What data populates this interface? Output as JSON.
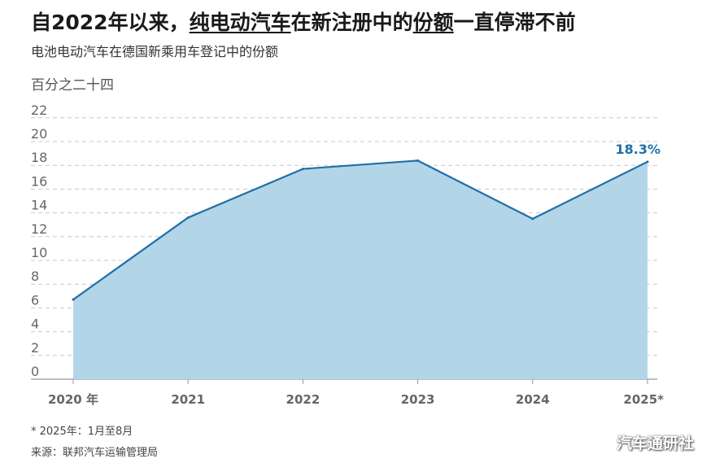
{
  "title": {
    "before": "自2022年以来，",
    "underlined1": "纯电动汽车",
    "middle": "在新注册中的",
    "underlined2": "份额",
    "after": "一直停滞不前"
  },
  "subtitle": "电池电动汽车在德国新乘用车登记中的份额",
  "unit_label": "百分之二十四",
  "footnote": "* 2025年：1月至8月",
  "source": "来源：联邦汽车运输管理局",
  "watermark": "汽车通研社",
  "chart_data": {
    "type": "area",
    "title": "自2022年以来，纯电动汽车在新注册中的份额一直停滞不前",
    "subtitle": "电池电动汽车在德国新乘用车登记中的份额",
    "categories": [
      "2020 年",
      "2021",
      "2022",
      "2023",
      "2024",
      "2025*"
    ],
    "series": [
      {
        "values": [
          6.7,
          13.6,
          17.7,
          18.4,
          13.5,
          18.3
        ]
      }
    ],
    "y_ticks": [
      0,
      2,
      4,
      6,
      8,
      10,
      12,
      14,
      16,
      18,
      20,
      22
    ],
    "ylim": [
      0,
      24
    ],
    "grid": "horizontal dashed",
    "annotation": {
      "label": "18.3%",
      "index": 5
    },
    "colors": {
      "line": "#1f6fa8",
      "fill": "#b3d5e8",
      "annotation": "#1f6fa8",
      "grid": "#c8c8c8",
      "tick": "#666666"
    }
  }
}
